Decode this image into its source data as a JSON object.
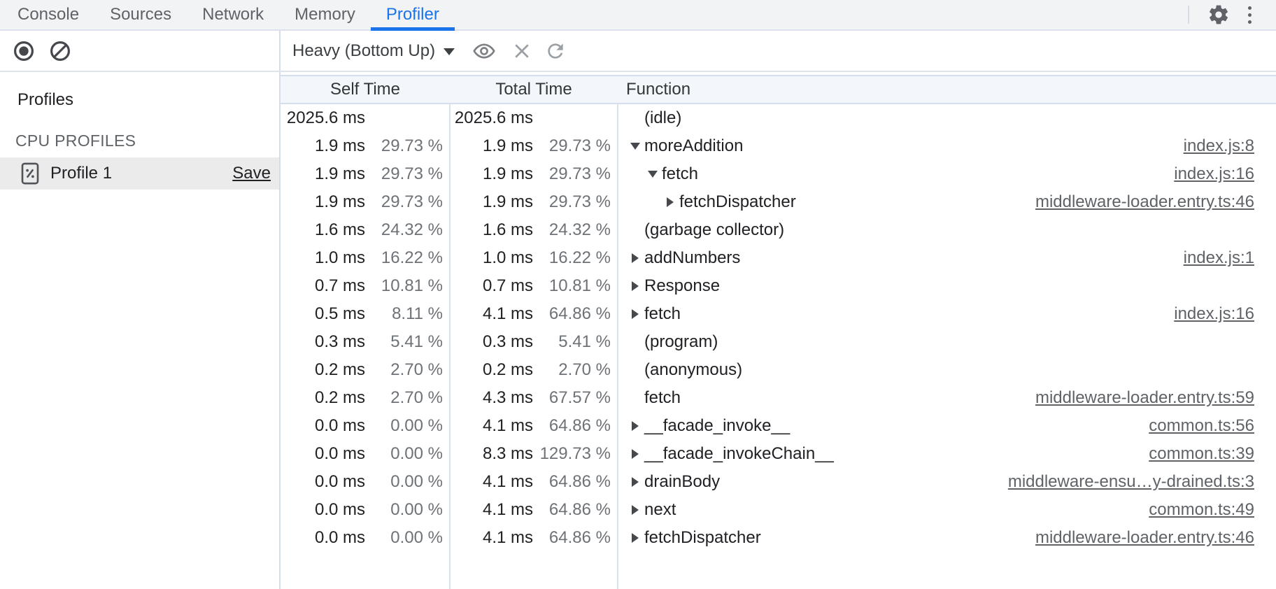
{
  "tabbar": {
    "tabs": [
      {
        "label": "Console",
        "active": false
      },
      {
        "label": "Sources",
        "active": false
      },
      {
        "label": "Network",
        "active": false
      },
      {
        "label": "Memory",
        "active": false
      },
      {
        "label": "Profiler",
        "active": true
      }
    ]
  },
  "toolbar": {
    "view_select": "Heavy (Bottom Up)"
  },
  "sidebar": {
    "title": "Profiles",
    "section_title": "CPU PROFILES",
    "profile": {
      "name": "Profile 1",
      "save_label": "Save"
    }
  },
  "table": {
    "columns": [
      "Self Time",
      "Total Time",
      "Function"
    ],
    "rows": [
      {
        "self_ms": "2025.6 ms",
        "self_pct": "",
        "total_ms": "2025.6 ms",
        "total_pct": "",
        "fn": "(idle)",
        "level": 0,
        "arrow": "none",
        "link": ""
      },
      {
        "self_ms": "1.9 ms",
        "self_pct": "29.73 %",
        "total_ms": "1.9 ms",
        "total_pct": "29.73 %",
        "fn": "moreAddition",
        "level": 0,
        "arrow": "down",
        "link": "index.js:8"
      },
      {
        "self_ms": "1.9 ms",
        "self_pct": "29.73 %",
        "total_ms": "1.9 ms",
        "total_pct": "29.73 %",
        "fn": "fetch",
        "level": 1,
        "arrow": "down",
        "link": "index.js:16"
      },
      {
        "self_ms": "1.9 ms",
        "self_pct": "29.73 %",
        "total_ms": "1.9 ms",
        "total_pct": "29.73 %",
        "fn": "fetchDispatcher",
        "level": 2,
        "arrow": "right",
        "link": "middleware-loader.entry.ts:46"
      },
      {
        "self_ms": "1.6 ms",
        "self_pct": "24.32 %",
        "total_ms": "1.6 ms",
        "total_pct": "24.32 %",
        "fn": "(garbage collector)",
        "level": 0,
        "arrow": "none",
        "link": ""
      },
      {
        "self_ms": "1.0 ms",
        "self_pct": "16.22 %",
        "total_ms": "1.0 ms",
        "total_pct": "16.22 %",
        "fn": "addNumbers",
        "level": 0,
        "arrow": "right",
        "link": "index.js:1"
      },
      {
        "self_ms": "0.7 ms",
        "self_pct": "10.81 %",
        "total_ms": "0.7 ms",
        "total_pct": "10.81 %",
        "fn": "Response",
        "level": 0,
        "arrow": "right",
        "link": ""
      },
      {
        "self_ms": "0.5 ms",
        "self_pct": "8.11 %",
        "total_ms": "4.1 ms",
        "total_pct": "64.86 %",
        "fn": "fetch",
        "level": 0,
        "arrow": "right",
        "link": "index.js:16"
      },
      {
        "self_ms": "0.3 ms",
        "self_pct": "5.41 %",
        "total_ms": "0.3 ms",
        "total_pct": "5.41 %",
        "fn": "(program)",
        "level": 0,
        "arrow": "none",
        "link": ""
      },
      {
        "self_ms": "0.2 ms",
        "self_pct": "2.70 %",
        "total_ms": "0.2 ms",
        "total_pct": "2.70 %",
        "fn": "(anonymous)",
        "level": 0,
        "arrow": "none",
        "link": ""
      },
      {
        "self_ms": "0.2 ms",
        "self_pct": "2.70 %",
        "total_ms": "4.3 ms",
        "total_pct": "67.57 %",
        "fn": "fetch",
        "level": 0,
        "arrow": "none",
        "link": "middleware-loader.entry.ts:59"
      },
      {
        "self_ms": "0.0 ms",
        "self_pct": "0.00 %",
        "total_ms": "4.1 ms",
        "total_pct": "64.86 %",
        "fn": "__facade_invoke__",
        "level": 0,
        "arrow": "right",
        "link": "common.ts:56"
      },
      {
        "self_ms": "0.0 ms",
        "self_pct": "0.00 %",
        "total_ms": "8.3 ms",
        "total_pct": "129.73 %",
        "fn": "__facade_invokeChain__",
        "level": 0,
        "arrow": "right",
        "link": "common.ts:39"
      },
      {
        "self_ms": "0.0 ms",
        "self_pct": "0.00 %",
        "total_ms": "4.1 ms",
        "total_pct": "64.86 %",
        "fn": "drainBody",
        "level": 0,
        "arrow": "right",
        "link": "middleware-ensu…y-drained.ts:3"
      },
      {
        "self_ms": "0.0 ms",
        "self_pct": "0.00 %",
        "total_ms": "4.1 ms",
        "total_pct": "64.86 %",
        "fn": "next",
        "level": 0,
        "arrow": "right",
        "link": "common.ts:49"
      },
      {
        "self_ms": "0.0 ms",
        "self_pct": "0.00 %",
        "total_ms": "4.1 ms",
        "total_pct": "64.86 %",
        "fn": "fetchDispatcher",
        "level": 0,
        "arrow": "right",
        "link": "middleware-loader.entry.ts:46"
      }
    ]
  },
  "colors": {
    "accent_blue": "#1a73e8",
    "tabbar_bg": "#f1f3f4",
    "grid_line": "#d8e2ef",
    "header_bg": "#f3f6fa",
    "selected_row_bg": "#ebebeb",
    "icon_gray": "#5f6368",
    "percent_text": "#6e7277"
  }
}
